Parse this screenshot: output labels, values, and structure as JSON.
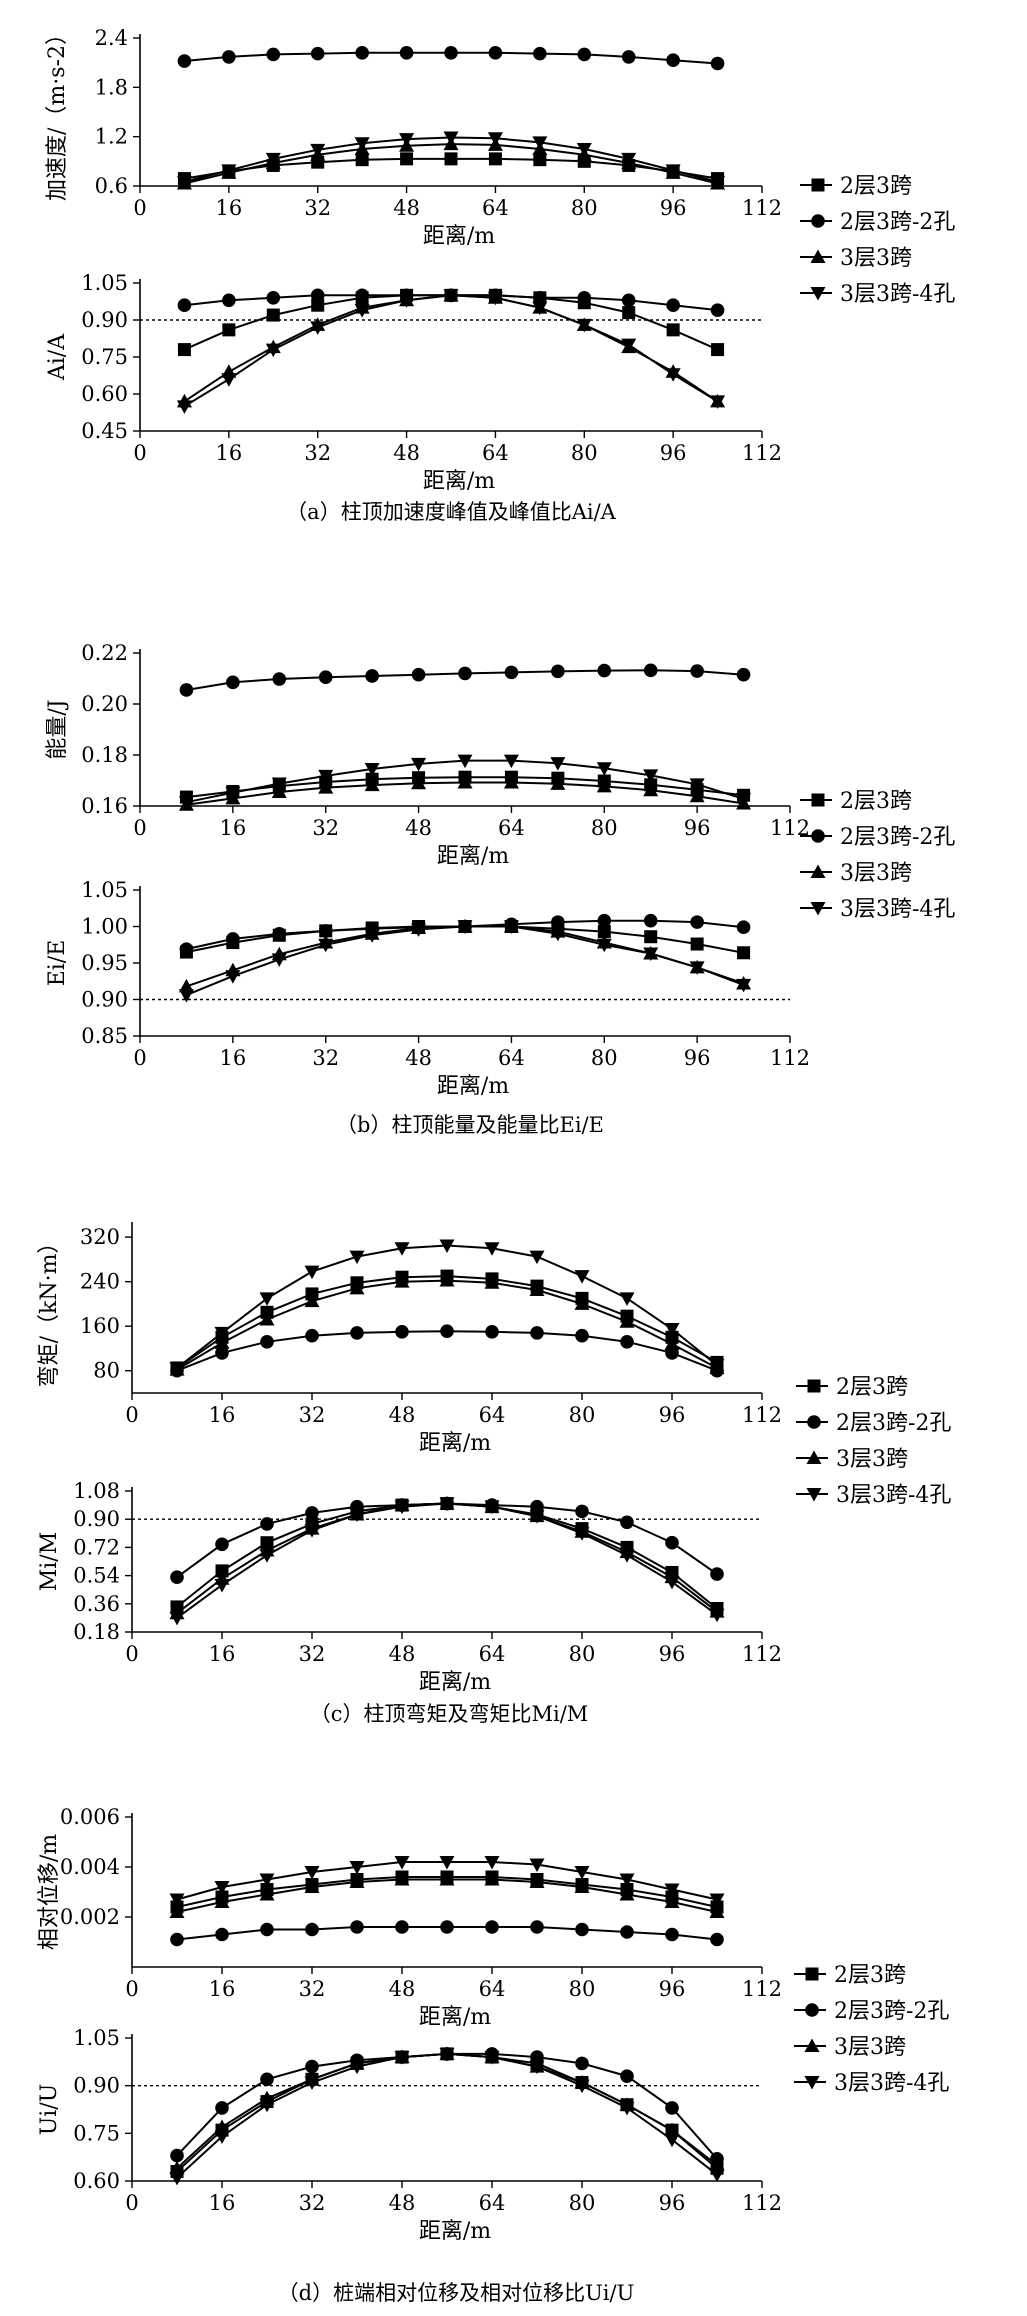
{
  "legend_labels": [
    "2层3跨",
    "2层3跨-2孔",
    "3层3跨",
    "3层3跨-4孔"
  ],
  "captions": {
    "a": "（a）柱顶加速度峰值及峰值比Ai/A",
    "b": "（b）柱顶能量及能量比Ei/E",
    "c": "（c）柱顶弯矩及弯矩比Mi/M",
    "d": "（d）桩端相对位移及相对位移比Ui/U"
  },
  "chart_data": [
    {
      "id": "a-top",
      "type": "line",
      "ylabel": "加速度/（m·s-2）",
      "xlabel": "距离/m",
      "xlim": [
        0,
        112
      ],
      "xticks": [
        "0",
        "16",
        "32",
        "48",
        "64",
        "80",
        "96",
        "112"
      ],
      "ylim": [
        0.6,
        2.4
      ],
      "yticks": [
        "0.6",
        "1.2",
        "1.8",
        "2.4"
      ],
      "x": [
        8,
        16,
        24,
        32,
        40,
        48,
        56,
        64,
        72,
        80,
        88,
        96,
        104
      ],
      "series": [
        {
          "name": "2层3跨",
          "marker": "square",
          "values": [
            0.69,
            0.78,
            0.85,
            0.89,
            0.92,
            0.93,
            0.93,
            0.93,
            0.92,
            0.9,
            0.85,
            0.78,
            0.69
          ]
        },
        {
          "name": "2层3跨-2孔",
          "marker": "circle",
          "values": [
            2.12,
            2.17,
            2.2,
            2.21,
            2.22,
            2.22,
            2.22,
            2.22,
            2.21,
            2.2,
            2.17,
            2.13,
            2.09
          ]
        },
        {
          "name": "3层3跨",
          "marker": "triangle-up",
          "values": [
            0.63,
            0.76,
            0.88,
            0.98,
            1.05,
            1.09,
            1.11,
            1.1,
            1.05,
            0.98,
            0.88,
            0.76,
            0.63
          ]
        },
        {
          "name": "3层3跨-4孔",
          "marker": "triangle-down",
          "values": [
            0.65,
            0.79,
            0.93,
            1.04,
            1.12,
            1.17,
            1.19,
            1.18,
            1.13,
            1.05,
            0.93,
            0.79,
            0.65
          ]
        }
      ]
    },
    {
      "id": "a-bottom",
      "type": "line",
      "ylabel": "Ai/A",
      "xlabel": "距离/m",
      "xlim": [
        0,
        112
      ],
      "xticks": [
        "0",
        "16",
        "32",
        "48",
        "64",
        "80",
        "96",
        "112"
      ],
      "ylim": [
        0.45,
        1.05
      ],
      "yticks": [
        "0.45",
        "0.60",
        "0.75",
        "0.90",
        "1.05"
      ],
      "reference_line": 0.9,
      "x": [
        8,
        16,
        24,
        32,
        40,
        48,
        56,
        64,
        72,
        80,
        88,
        96,
        104
      ],
      "series": [
        {
          "name": "2层3跨",
          "marker": "square",
          "values": [
            0.78,
            0.86,
            0.92,
            0.96,
            0.99,
            1.0,
            1.0,
            1.0,
            0.99,
            0.97,
            0.93,
            0.86,
            0.78
          ]
        },
        {
          "name": "2层3跨-2孔",
          "marker": "circle",
          "values": [
            0.96,
            0.98,
            0.99,
            1.0,
            1.0,
            1.0,
            1.0,
            1.0,
            0.99,
            0.99,
            0.98,
            0.96,
            0.94
          ]
        },
        {
          "name": "3层3跨",
          "marker": "triangle-up",
          "values": [
            0.57,
            0.69,
            0.79,
            0.88,
            0.95,
            0.98,
            1.0,
            0.99,
            0.95,
            0.88,
            0.79,
            0.69,
            0.57
          ]
        },
        {
          "name": "3层3跨-4孔",
          "marker": "triangle-down",
          "values": [
            0.55,
            0.66,
            0.78,
            0.87,
            0.94,
            0.98,
            1.0,
            0.99,
            0.95,
            0.88,
            0.8,
            0.68,
            0.57
          ]
        }
      ]
    },
    {
      "id": "b-top",
      "type": "line",
      "ylabel": "能量/J",
      "xlabel": "距离/m",
      "xlim": [
        0,
        112
      ],
      "xticks": [
        "0",
        "16",
        "32",
        "48",
        "64",
        "80",
        "96",
        "112"
      ],
      "ylim": [
        0.16,
        0.22
      ],
      "yticks": [
        "0.16",
        "0.18",
        "0.20",
        "0.22"
      ],
      "x": [
        8,
        16,
        24,
        32,
        40,
        48,
        56,
        64,
        72,
        80,
        88,
        96,
        104
      ],
      "series": [
        {
          "name": "2层3跨",
          "marker": "square",
          "values": [
            0.1635,
            0.1657,
            0.1678,
            0.1694,
            0.1705,
            0.1711,
            0.1713,
            0.1713,
            0.1709,
            0.1698,
            0.1683,
            0.1664,
            0.1642
          ]
        },
        {
          "name": "2层3跨-2孔",
          "marker": "circle",
          "values": [
            0.2055,
            0.2085,
            0.2098,
            0.2105,
            0.211,
            0.2115,
            0.212,
            0.2124,
            0.2128,
            0.2131,
            0.2132,
            0.2129,
            0.2115
          ]
        },
        {
          "name": "3层3跨",
          "marker": "triangle-up",
          "values": [
            0.1605,
            0.163,
            0.1655,
            0.1672,
            0.1682,
            0.1689,
            0.1692,
            0.1692,
            0.1687,
            0.1677,
            0.1662,
            0.1638,
            0.161
          ]
        },
        {
          "name": "3层3跨-4孔",
          "marker": "triangle-down",
          "values": [
            0.1615,
            0.1652,
            0.1688,
            0.1718,
            0.1745,
            0.1765,
            0.1778,
            0.1778,
            0.1768,
            0.1748,
            0.172,
            0.1685,
            0.1628
          ]
        }
      ]
    },
    {
      "id": "b-bottom",
      "type": "line",
      "ylabel": "Ei/E",
      "xlabel": "距离/m",
      "xlim": [
        0,
        112
      ],
      "xticks": [
        "0",
        "16",
        "32",
        "48",
        "64",
        "80",
        "96",
        "112"
      ],
      "ylim": [
        0.85,
        1.05
      ],
      "yticks": [
        "0.85",
        "0.90",
        "0.95",
        "1.00",
        "1.05"
      ],
      "reference_line": 0.9,
      "x": [
        8,
        16,
        24,
        32,
        40,
        48,
        56,
        64,
        72,
        80,
        88,
        96,
        104
      ],
      "series": [
        {
          "name": "2层3跨",
          "marker": "square",
          "values": [
            0.965,
            0.978,
            0.988,
            0.994,
            0.998,
            1.0,
            1.0,
            1.0,
            0.997,
            0.993,
            0.986,
            0.976,
            0.964
          ]
        },
        {
          "name": "2层3跨-2孔",
          "marker": "circle",
          "values": [
            0.969,
            0.983,
            0.99,
            0.994,
            0.997,
            0.999,
            1.0,
            1.003,
            1.006,
            1.008,
            1.008,
            1.006,
            0.999
          ]
        },
        {
          "name": "3层3跨",
          "marker": "triangle-up",
          "values": [
            0.918,
            0.94,
            0.962,
            0.978,
            0.99,
            0.998,
            1.0,
            1.0,
            0.993,
            0.978,
            0.963,
            0.944,
            0.922
          ]
        },
        {
          "name": "3层3跨-4孔",
          "marker": "triangle-down",
          "values": [
            0.906,
            0.932,
            0.955,
            0.975,
            0.988,
            0.996,
            1.0,
            1.0,
            0.99,
            0.975,
            0.963,
            0.944,
            0.92
          ]
        }
      ]
    },
    {
      "id": "c-top",
      "type": "line",
      "ylabel": "弯矩/（kN·m）",
      "xlabel": "距离/m",
      "xlim": [
        0,
        112
      ],
      "xticks": [
        "0",
        "16",
        "32",
        "48",
        "64",
        "80",
        "96",
        "112"
      ],
      "ylim": [
        40,
        340
      ],
      "yticks": [
        "80",
        "160",
        "240",
        "320"
      ],
      "x": [
        8,
        16,
        24,
        32,
        40,
        48,
        56,
        64,
        72,
        80,
        88,
        96,
        104
      ],
      "series": [
        {
          "name": "2层3跨",
          "marker": "square",
          "values": [
            85,
            140,
            185,
            218,
            238,
            248,
            250,
            245,
            232,
            210,
            178,
            140,
            95
          ]
        },
        {
          "name": "2层3跨-2孔",
          "marker": "circle",
          "values": [
            80,
            112,
            132,
            143,
            148,
            150,
            151,
            150,
            148,
            143,
            132,
            112,
            80
          ]
        },
        {
          "name": "3层3跨",
          "marker": "triangle-up",
          "values": [
            82,
            130,
            172,
            205,
            228,
            240,
            242,
            238,
            225,
            200,
            168,
            128,
            85
          ]
        },
        {
          "name": "3层3跨-4孔",
          "marker": "triangle-down",
          "values": [
            85,
            148,
            210,
            258,
            285,
            300,
            305,
            300,
            285,
            250,
            210,
            155,
            90
          ]
        }
      ]
    },
    {
      "id": "c-bottom",
      "type": "line",
      "ylabel": "Mi/M",
      "xlabel": "距离/m",
      "xlim": [
        0,
        112
      ],
      "xticks": [
        "0",
        "16",
        "32",
        "48",
        "64",
        "80",
        "96",
        "112"
      ],
      "ylim": [
        0.18,
        1.08
      ],
      "yticks": [
        "0.18",
        "0.36",
        "0.54",
        "0.72",
        "0.90",
        "1.08"
      ],
      "reference_line": 0.9,
      "x": [
        8,
        16,
        24,
        32,
        40,
        48,
        56,
        64,
        72,
        80,
        88,
        96,
        104
      ],
      "series": [
        {
          "name": "2层3跨",
          "marker": "square",
          "values": [
            0.34,
            0.57,
            0.75,
            0.87,
            0.95,
            0.99,
            1.0,
            0.98,
            0.93,
            0.84,
            0.72,
            0.56,
            0.33
          ]
        },
        {
          "name": "2层3跨-2孔",
          "marker": "circle",
          "values": [
            0.53,
            0.74,
            0.87,
            0.94,
            0.98,
            0.99,
            1.0,
            0.99,
            0.98,
            0.95,
            0.88,
            0.75,
            0.55
          ]
        },
        {
          "name": "3层3跨",
          "marker": "triangle-up",
          "values": [
            0.3,
            0.52,
            0.7,
            0.84,
            0.93,
            0.99,
            1.0,
            0.98,
            0.92,
            0.82,
            0.69,
            0.53,
            0.31
          ]
        },
        {
          "name": "3层3跨-4孔",
          "marker": "triangle-down",
          "values": [
            0.27,
            0.48,
            0.67,
            0.83,
            0.93,
            0.98,
            1.0,
            0.98,
            0.92,
            0.81,
            0.67,
            0.5,
            0.29
          ]
        }
      ]
    },
    {
      "id": "d-top",
      "type": "line",
      "ylabel": "相对位移/m",
      "xlabel": "距离/m",
      "xlim": [
        0,
        112
      ],
      "xticks": [
        "0",
        "16",
        "32",
        "48",
        "64",
        "80",
        "96",
        "112"
      ],
      "ylim": [
        0.0,
        0.006
      ],
      "yticks": [
        "0.002",
        "0.004",
        "0.006"
      ],
      "x": [
        8,
        16,
        24,
        32,
        40,
        48,
        56,
        64,
        72,
        80,
        88,
        96,
        104
      ],
      "series": [
        {
          "name": "2层3跨",
          "marker": "square",
          "values": [
            0.0024,
            0.0028,
            0.0031,
            0.0033,
            0.0035,
            0.0036,
            0.0036,
            0.0036,
            0.0035,
            0.0033,
            0.0031,
            0.0028,
            0.0024
          ]
        },
        {
          "name": "2层3跨-2孔",
          "marker": "circle",
          "values": [
            0.0011,
            0.0013,
            0.0015,
            0.0015,
            0.0016,
            0.0016,
            0.0016,
            0.0016,
            0.0016,
            0.0015,
            0.0014,
            0.0013,
            0.0011
          ]
        },
        {
          "name": "3层3跨",
          "marker": "triangle-up",
          "values": [
            0.0022,
            0.0026,
            0.0029,
            0.0032,
            0.0034,
            0.0035,
            0.0035,
            0.0035,
            0.0034,
            0.0032,
            0.0029,
            0.0026,
            0.0022
          ]
        },
        {
          "name": "3层3跨-4孔",
          "marker": "triangle-down",
          "values": [
            0.0027,
            0.0032,
            0.0035,
            0.0038,
            0.004,
            0.0042,
            0.0042,
            0.0042,
            0.0041,
            0.0038,
            0.0035,
            0.0031,
            0.0027
          ]
        }
      ]
    },
    {
      "id": "d-bottom",
      "type": "line",
      "ylabel": "Ui/U",
      "xlabel": "距离/m",
      "xlim": [
        0,
        112
      ],
      "xticks": [
        "0",
        "16",
        "32",
        "48",
        "64",
        "80",
        "96",
        "112"
      ],
      "ylim": [
        0.6,
        1.05
      ],
      "yticks": [
        "0.60",
        "0.75",
        "0.90",
        "1.05"
      ],
      "reference_line": 0.9,
      "x": [
        8,
        16,
        24,
        32,
        40,
        48,
        56,
        64,
        72,
        80,
        88,
        96,
        104
      ],
      "series": [
        {
          "name": "2层3跨",
          "marker": "square",
          "values": [
            0.63,
            0.76,
            0.85,
            0.92,
            0.97,
            0.99,
            1.0,
            0.99,
            0.97,
            0.91,
            0.84,
            0.76,
            0.64
          ]
        },
        {
          "name": "2层3跨-2孔",
          "marker": "circle",
          "values": [
            0.68,
            0.83,
            0.92,
            0.96,
            0.98,
            0.99,
            1.0,
            1.0,
            0.99,
            0.97,
            0.93,
            0.83,
            0.67
          ]
        },
        {
          "name": "3层3跨",
          "marker": "triangle-up",
          "values": [
            0.64,
            0.77,
            0.86,
            0.92,
            0.97,
            0.99,
            1.0,
            0.99,
            0.96,
            0.91,
            0.84,
            0.76,
            0.65
          ]
        },
        {
          "name": "3层3跨-4孔",
          "marker": "triangle-down",
          "values": [
            0.61,
            0.74,
            0.84,
            0.91,
            0.96,
            0.99,
            1.0,
            0.99,
            0.96,
            0.9,
            0.83,
            0.73,
            0.62
          ]
        }
      ]
    }
  ]
}
